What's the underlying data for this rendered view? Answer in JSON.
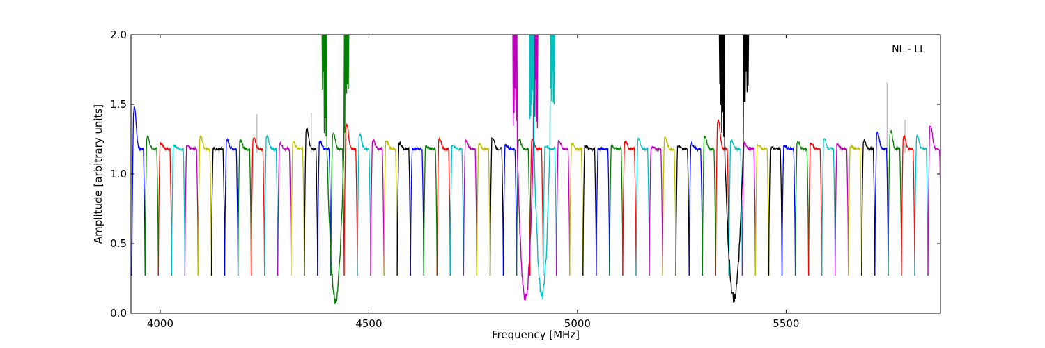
{
  "chart_data": {
    "type": "line",
    "annotation": "NL - LL",
    "xlabel": "Frequency [MHz]",
    "ylabel": "Amplitude [arbitrary units]",
    "xlim": [
      3930,
      5870
    ],
    "ylim": [
      0.0,
      2.0
    ],
    "x_ticks": [
      4000,
      4500,
      5000,
      5500
    ],
    "x_tick_labels": [
      "4000",
      "4500",
      "5000",
      "5500"
    ],
    "y_ticks": [
      0.0,
      0.5,
      1.0,
      1.5,
      2.0
    ],
    "y_tick_labels": [
      "0.0",
      "0.5",
      "1.0",
      "1.5",
      "2.0"
    ],
    "grid": false,
    "color_cycle": [
      "#0000ff",
      "#008000",
      "#ff0000",
      "#00bfbf",
      "#bf00bf",
      "#bfbf00",
      "#000000"
    ],
    "band": {
      "start": 3932,
      "width": 31.8,
      "count": 61,
      "edge_dip_level": 0.27,
      "top_level": 1.18,
      "peak_values": [
        1.48,
        1.27,
        1.22,
        1.21,
        1.2,
        1.27,
        1.18,
        1.24,
        1.24,
        1.26,
        1.27,
        1.22,
        1.23,
        1.33,
        1.23,
        1.3,
        1.36,
        1.28,
        1.24,
        1.24,
        1.22,
        1.18,
        1.2,
        1.25,
        1.2,
        1.24,
        1.21,
        1.26,
        1.21,
        1.25,
        1.25,
        1.2,
        1.24,
        1.22,
        1.2,
        1.18,
        1.2,
        1.23,
        1.25,
        1.19,
        1.26,
        1.2,
        1.22,
        1.27,
        1.39,
        1.24,
        1.22,
        1.21,
        1.19,
        1.2,
        1.23,
        1.22,
        1.25,
        1.21,
        1.2,
        1.24,
        1.3,
        1.31,
        1.27,
        1.27,
        1.35
      ],
      "rfi_segments": [
        {
          "center": 4420,
          "half_width": 32,
          "dip_min": 0.06,
          "spike_max": 2.0,
          "color": "#008000"
        },
        {
          "center": 4875,
          "half_width": 30,
          "dip_min": 0.06,
          "spike_max": 2.0,
          "color": "#bf00bf"
        },
        {
          "center": 4915,
          "half_width": 30,
          "dip_min": 0.08,
          "spike_max": 2.0,
          "color": "#00bfbf"
        },
        {
          "center": 5375,
          "half_width": 35,
          "dip_min": 0.07,
          "spike_max": 2.0,
          "color": "#000000"
        }
      ],
      "gray_spikes": [
        {
          "x": 4232,
          "y": 1.43
        },
        {
          "x": 4362,
          "y": 1.44
        },
        {
          "x": 5742,
          "y": 1.66
        },
        {
          "x": 5785,
          "y": 1.39
        }
      ]
    }
  }
}
